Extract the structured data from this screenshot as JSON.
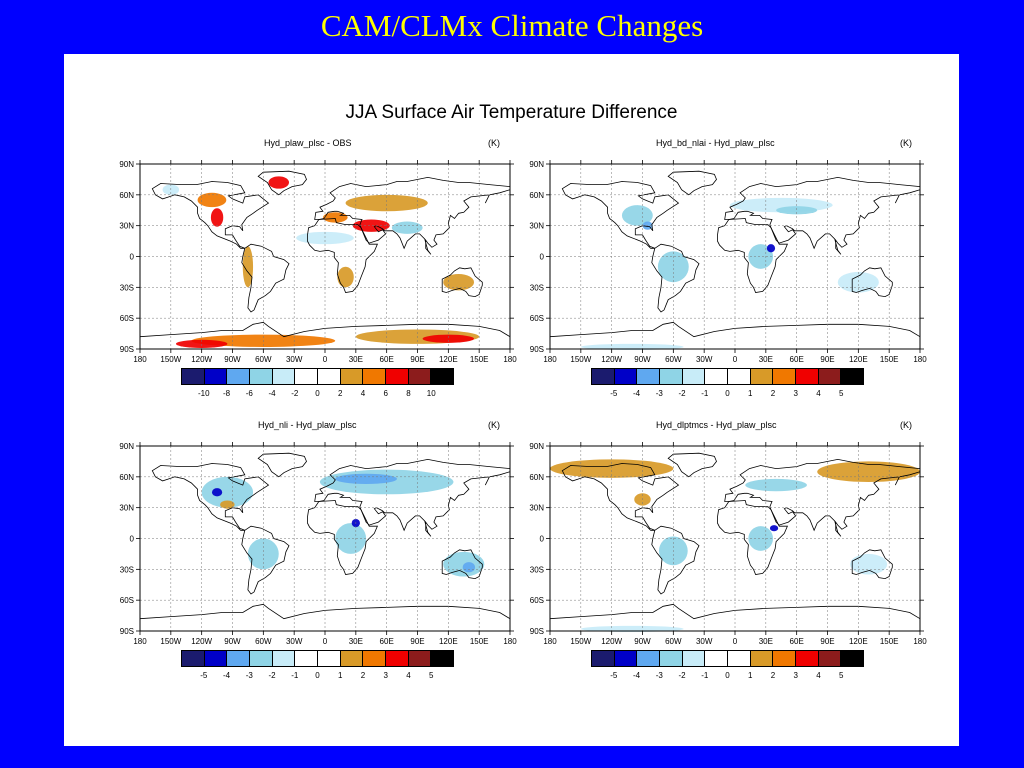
{
  "slide_title": "CAM/CLMx Climate Changes",
  "figure_title": "JJA Surface Air Temperature Difference",
  "lon_ticks": [
    "180",
    "150W",
    "120W",
    "90W",
    "60W",
    "30W",
    "0",
    "30E",
    "60E",
    "90E",
    "120E",
    "150E",
    "180"
  ],
  "lat_ticks": [
    "90N",
    "60N",
    "30N",
    "0",
    "30S",
    "60S",
    "90S"
  ],
  "colors": [
    "#1b1b6e",
    "#0000c8",
    "#5fa8f0",
    "#8fd4e6",
    "#c8ecf8",
    "#ffffff",
    "#ffffff",
    "#d89a28",
    "#f07800",
    "#f00000",
    "#8c1c1c",
    "#000000"
  ],
  "maps": [
    {
      "title": "Hyd_plaw_plsc - OBS",
      "units": "(K)",
      "levels": [
        "-10",
        "-8",
        "-6",
        "-4",
        "-2",
        "0",
        "2",
        "4",
        "6",
        "8",
        "10"
      ],
      "anomalies": [
        {
          "lon": -150,
          "lat": 65,
          "rx": 8,
          "ry": 5,
          "color": "#c8ecf8"
        },
        {
          "lon": -110,
          "lat": 55,
          "rx": 14,
          "ry": 7,
          "color": "#f07800"
        },
        {
          "lon": -105,
          "lat": 38,
          "rx": 6,
          "ry": 9,
          "color": "#f00000"
        },
        {
          "lon": -45,
          "lat": 72,
          "rx": 10,
          "ry": 6,
          "color": "#f00000"
        },
        {
          "lon": -75,
          "lat": -10,
          "rx": 5,
          "ry": 20,
          "color": "#d89a28"
        },
        {
          "lon": 10,
          "lat": 38,
          "rx": 12,
          "ry": 5,
          "color": "#f07800"
        },
        {
          "lon": 60,
          "lat": 52,
          "rx": 40,
          "ry": 8,
          "color": "#d89a28"
        },
        {
          "lon": 45,
          "lat": 30,
          "rx": 18,
          "ry": 6,
          "color": "#f00000"
        },
        {
          "lon": 0,
          "lat": 18,
          "rx": 28,
          "ry": 6,
          "color": "#c8ecf8"
        },
        {
          "lon": 80,
          "lat": 28,
          "rx": 15,
          "ry": 6,
          "color": "#8fd4e6"
        },
        {
          "lon": 20,
          "lat": -20,
          "rx": 8,
          "ry": 10,
          "color": "#d89a28"
        },
        {
          "lon": 130,
          "lat": -25,
          "rx": 15,
          "ry": 8,
          "color": "#d89a28"
        },
        {
          "lon": -60,
          "lat": -82,
          "rx": 70,
          "ry": 6,
          "color": "#f07800"
        },
        {
          "lon": 90,
          "lat": -78,
          "rx": 60,
          "ry": 7,
          "color": "#d89a28"
        },
        {
          "lon": -120,
          "lat": -85,
          "rx": 25,
          "ry": 4,
          "color": "#f00000"
        },
        {
          "lon": 120,
          "lat": -80,
          "rx": 25,
          "ry": 4,
          "color": "#f00000"
        }
      ]
    },
    {
      "title": "Hyd_bd_nlai - Hyd_plaw_plsc",
      "units": "(K)",
      "levels": [
        "-5",
        "-4",
        "-3",
        "-2",
        "-1",
        "0",
        "1",
        "2",
        "3",
        "4",
        "5"
      ],
      "anomalies": [
        {
          "lon": -95,
          "lat": 40,
          "rx": 15,
          "ry": 10,
          "color": "#8fd4e6"
        },
        {
          "lon": -85,
          "lat": 30,
          "rx": 5,
          "ry": 4,
          "color": "#5fa8f0"
        },
        {
          "lon": 45,
          "lat": 50,
          "rx": 50,
          "ry": 7,
          "color": "#c8ecf8"
        },
        {
          "lon": 60,
          "lat": 45,
          "rx": 20,
          "ry": 4,
          "color": "#8fd4e6"
        },
        {
          "lon": -60,
          "lat": -10,
          "rx": 15,
          "ry": 15,
          "color": "#8fd4e6"
        },
        {
          "lon": 25,
          "lat": 0,
          "rx": 12,
          "ry": 12,
          "color": "#8fd4e6"
        },
        {
          "lon": 35,
          "lat": 8,
          "rx": 4,
          "ry": 4,
          "color": "#0000c8"
        },
        {
          "lon": 120,
          "lat": -25,
          "rx": 20,
          "ry": 10,
          "color": "#c8ecf8"
        },
        {
          "lon": -100,
          "lat": -88,
          "rx": 50,
          "ry": 3,
          "color": "#c8ecf8"
        }
      ]
    },
    {
      "title": "Hyd_nli - Hyd_plaw_plsc",
      "units": "(K)",
      "levels": [
        "-5",
        "-4",
        "-3",
        "-2",
        "-1",
        "0",
        "1",
        "2",
        "3",
        "4",
        "5"
      ],
      "anomalies": [
        {
          "lon": -95,
          "lat": 45,
          "rx": 25,
          "ry": 15,
          "color": "#8fd4e6"
        },
        {
          "lon": -105,
          "lat": 45,
          "rx": 5,
          "ry": 4,
          "color": "#0000c8"
        },
        {
          "lon": -95,
          "lat": 33,
          "rx": 7,
          "ry": 4,
          "color": "#d89a28"
        },
        {
          "lon": 60,
          "lat": 55,
          "rx": 65,
          "ry": 12,
          "color": "#8fd4e6"
        },
        {
          "lon": 40,
          "lat": 58,
          "rx": 30,
          "ry": 5,
          "color": "#5fa8f0"
        },
        {
          "lon": -60,
          "lat": -15,
          "rx": 15,
          "ry": 15,
          "color": "#8fd4e6"
        },
        {
          "lon": 25,
          "lat": 0,
          "rx": 15,
          "ry": 15,
          "color": "#8fd4e6"
        },
        {
          "lon": 30,
          "lat": 15,
          "rx": 4,
          "ry": 4,
          "color": "#0000c8"
        },
        {
          "lon": 135,
          "lat": -25,
          "rx": 20,
          "ry": 12,
          "color": "#8fd4e6"
        },
        {
          "lon": 140,
          "lat": -28,
          "rx": 6,
          "ry": 5,
          "color": "#5fa8f0"
        }
      ]
    },
    {
      "title": "Hyd_dlptmcs - Hyd_plaw_plsc",
      "units": "(K)",
      "levels": [
        "-5",
        "-4",
        "-3",
        "-2",
        "-1",
        "0",
        "1",
        "2",
        "3",
        "4",
        "5"
      ],
      "anomalies": [
        {
          "lon": -120,
          "lat": 68,
          "rx": 60,
          "ry": 9,
          "color": "#d89a28"
        },
        {
          "lon": 130,
          "lat": 65,
          "rx": 50,
          "ry": 10,
          "color": "#d89a28"
        },
        {
          "lon": -90,
          "lat": 38,
          "rx": 8,
          "ry": 6,
          "color": "#d89a28"
        },
        {
          "lon": 40,
          "lat": 52,
          "rx": 30,
          "ry": 6,
          "color": "#8fd4e6"
        },
        {
          "lon": -60,
          "lat": -12,
          "rx": 14,
          "ry": 14,
          "color": "#8fd4e6"
        },
        {
          "lon": 25,
          "lat": 0,
          "rx": 12,
          "ry": 12,
          "color": "#8fd4e6"
        },
        {
          "lon": 38,
          "lat": 10,
          "rx": 4,
          "ry": 3,
          "color": "#0000c8"
        },
        {
          "lon": 130,
          "lat": -25,
          "rx": 18,
          "ry": 10,
          "color": "#c8ecf8"
        },
        {
          "lon": -100,
          "lat": -88,
          "rx": 50,
          "ry": 3,
          "color": "#c8ecf8"
        }
      ]
    }
  ]
}
